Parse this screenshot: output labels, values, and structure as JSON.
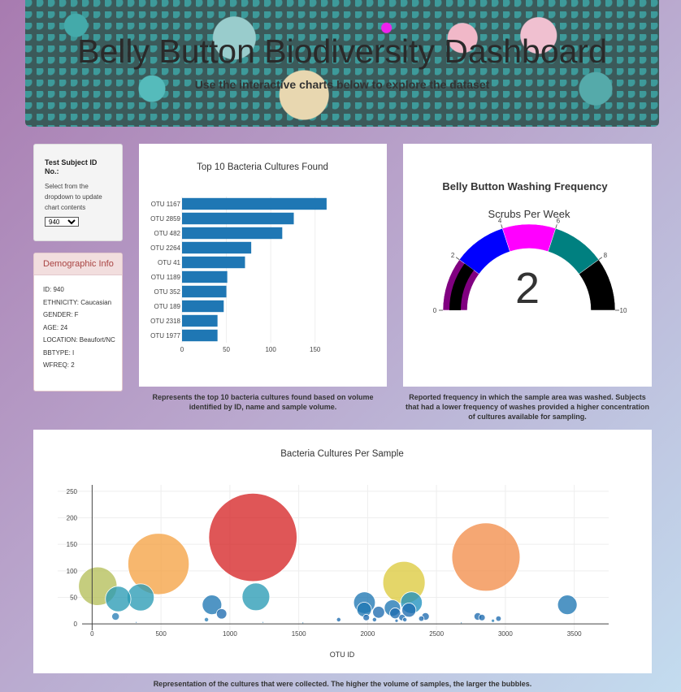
{
  "header": {
    "title": "Belly Button Biodiversity Dashboard",
    "subtitle": "Use the interactive charts below to explore the dataset"
  },
  "selector": {
    "title": "Test Subject ID No.:",
    "help": "Select from the dropdown to update chart contents",
    "selected": "940"
  },
  "demographic": {
    "heading": "Demographic Info",
    "lines": [
      "ID: 940",
      "ETHNICITY: Caucasian",
      "GENDER: F",
      "AGE: 24",
      "LOCATION: Beaufort/NC",
      "BBTYPE: I",
      "WFREQ: 2"
    ]
  },
  "captions": {
    "bar": "Represents the top 10 bacteria cultures found based on volume identified by ID, name and sample volume.",
    "gauge": "Reported frequency in which the sample area was washed. Subjects that had a lower frequency of washes provided a higher concentration of cultures available for sampling.",
    "bubble": "Representation of the cultures that were collected. The higher the volume of samples, the larger the bubbles."
  },
  "chart_data": [
    {
      "type": "bar",
      "orientation": "horizontal",
      "title": "Top 10 Bacteria Cultures Found",
      "categories": [
        "OTU 1167",
        "OTU 2859",
        "OTU 482",
        "OTU 2264",
        "OTU 41",
        "OTU 1189",
        "OTU 352",
        "OTU 189",
        "OTU 2318",
        "OTU 1977"
      ],
      "values": [
        163,
        126,
        113,
        78,
        71,
        51,
        50,
        47,
        40,
        40
      ],
      "xlim": [
        0,
        175
      ],
      "xticks": [
        0,
        50,
        100,
        150
      ],
      "color": "#1f77b4"
    },
    {
      "type": "gauge",
      "title": "Belly Button Washing Frequency",
      "subtitle": "Scrubs Per Week",
      "value": 2,
      "range": [
        0,
        10
      ],
      "ticks": [
        0,
        2,
        4,
        6,
        8,
        10
      ],
      "bands": [
        {
          "from": 0,
          "to": 2,
          "color": "#800080"
        },
        {
          "from": 2,
          "to": 4,
          "color": "#0000ff"
        },
        {
          "from": 4,
          "to": 6,
          "color": "#ff00ff"
        },
        {
          "from": 6,
          "to": 8,
          "color": "#008080"
        },
        {
          "from": 8,
          "to": 10,
          "color": "#000000"
        }
      ],
      "bar_color": "#000000"
    },
    {
      "type": "scatter",
      "title": "Bacteria Cultures Per Sample",
      "xlabel": "OTU ID",
      "xlim": [
        -250,
        3750
      ],
      "ylim": [
        -12,
        262
      ],
      "xticks": [
        0,
        500,
        1000,
        1500,
        2000,
        2500,
        3000,
        3500
      ],
      "yticks": [
        0,
        50,
        100,
        150,
        200,
        250
      ],
      "points": [
        {
          "x": 1167,
          "y": 163,
          "size": 163,
          "color": "#d62728"
        },
        {
          "x": 2859,
          "y": 126,
          "size": 126,
          "color": "#f28e4b"
        },
        {
          "x": 482,
          "y": 113,
          "size": 113,
          "color": "#f5a345"
        },
        {
          "x": 2264,
          "y": 78,
          "size": 78,
          "color": "#dccb3f"
        },
        {
          "x": 41,
          "y": 71,
          "size": 71,
          "color": "#b5bf5a"
        },
        {
          "x": 1189,
          "y": 51,
          "size": 51,
          "color": "#2a9bb5"
        },
        {
          "x": 352,
          "y": 50,
          "size": 50,
          "color": "#2a9bb5"
        },
        {
          "x": 189,
          "y": 47,
          "size": 47,
          "color": "#2a9bb5"
        },
        {
          "x": 2318,
          "y": 40,
          "size": 40,
          "color": "#1f91bf"
        },
        {
          "x": 1977,
          "y": 40,
          "size": 40,
          "color": "#1f77b4"
        },
        {
          "x": 3450,
          "y": 36,
          "size": 36,
          "color": "#1f77b4"
        },
        {
          "x": 870,
          "y": 36,
          "size": 36,
          "color": "#1f77b4"
        },
        {
          "x": 1975,
          "y": 27,
          "size": 27,
          "color": "#1f77b4"
        },
        {
          "x": 2180,
          "y": 30,
          "size": 30,
          "color": "#1f77b4"
        },
        {
          "x": 2300,
          "y": 26,
          "size": 26,
          "color": "#1f6bb0"
        },
        {
          "x": 940,
          "y": 19,
          "size": 19,
          "color": "#1f6bb0"
        },
        {
          "x": 2080,
          "y": 22,
          "size": 22,
          "color": "#1f6bb0"
        },
        {
          "x": 2200,
          "y": 20,
          "size": 20,
          "color": "#1f6bb0"
        },
        {
          "x": 1990,
          "y": 12,
          "size": 12,
          "color": "#1f6bb0"
        },
        {
          "x": 2250,
          "y": 12,
          "size": 12,
          "color": "#1f6bb0"
        },
        {
          "x": 2420,
          "y": 14,
          "size": 14,
          "color": "#1f6bb0"
        },
        {
          "x": 2800,
          "y": 14,
          "size": 14,
          "color": "#1f6bb0"
        },
        {
          "x": 2830,
          "y": 12,
          "size": 12,
          "color": "#1f6bb0"
        },
        {
          "x": 2950,
          "y": 10,
          "size": 10,
          "color": "#1f6bb0"
        },
        {
          "x": 2390,
          "y": 10,
          "size": 10,
          "color": "#1f6bb0"
        },
        {
          "x": 2050,
          "y": 8,
          "size": 8,
          "color": "#1f6bb0"
        },
        {
          "x": 2270,
          "y": 8,
          "size": 8,
          "color": "#1f6bb0"
        },
        {
          "x": 1790,
          "y": 8,
          "size": 8,
          "color": "#1f6bb0"
        },
        {
          "x": 2210,
          "y": 6,
          "size": 6,
          "color": "#1f6bb0"
        },
        {
          "x": 170,
          "y": 14,
          "size": 14,
          "color": "#2a7fb6"
        },
        {
          "x": 830,
          "y": 8,
          "size": 8,
          "color": "#2a7fb6"
        },
        {
          "x": 2910,
          "y": 6,
          "size": 6,
          "color": "#2a7fb6"
        },
        {
          "x": 1240,
          "y": 3,
          "size": 3,
          "color": "#2a7fb6"
        },
        {
          "x": 320,
          "y": 3,
          "size": 3,
          "color": "#2a7fb6"
        },
        {
          "x": 1530,
          "y": 2,
          "size": 2,
          "color": "#2a7fb6"
        },
        {
          "x": 2680,
          "y": 2,
          "size": 2,
          "color": "#2a7fb6"
        }
      ]
    }
  ]
}
